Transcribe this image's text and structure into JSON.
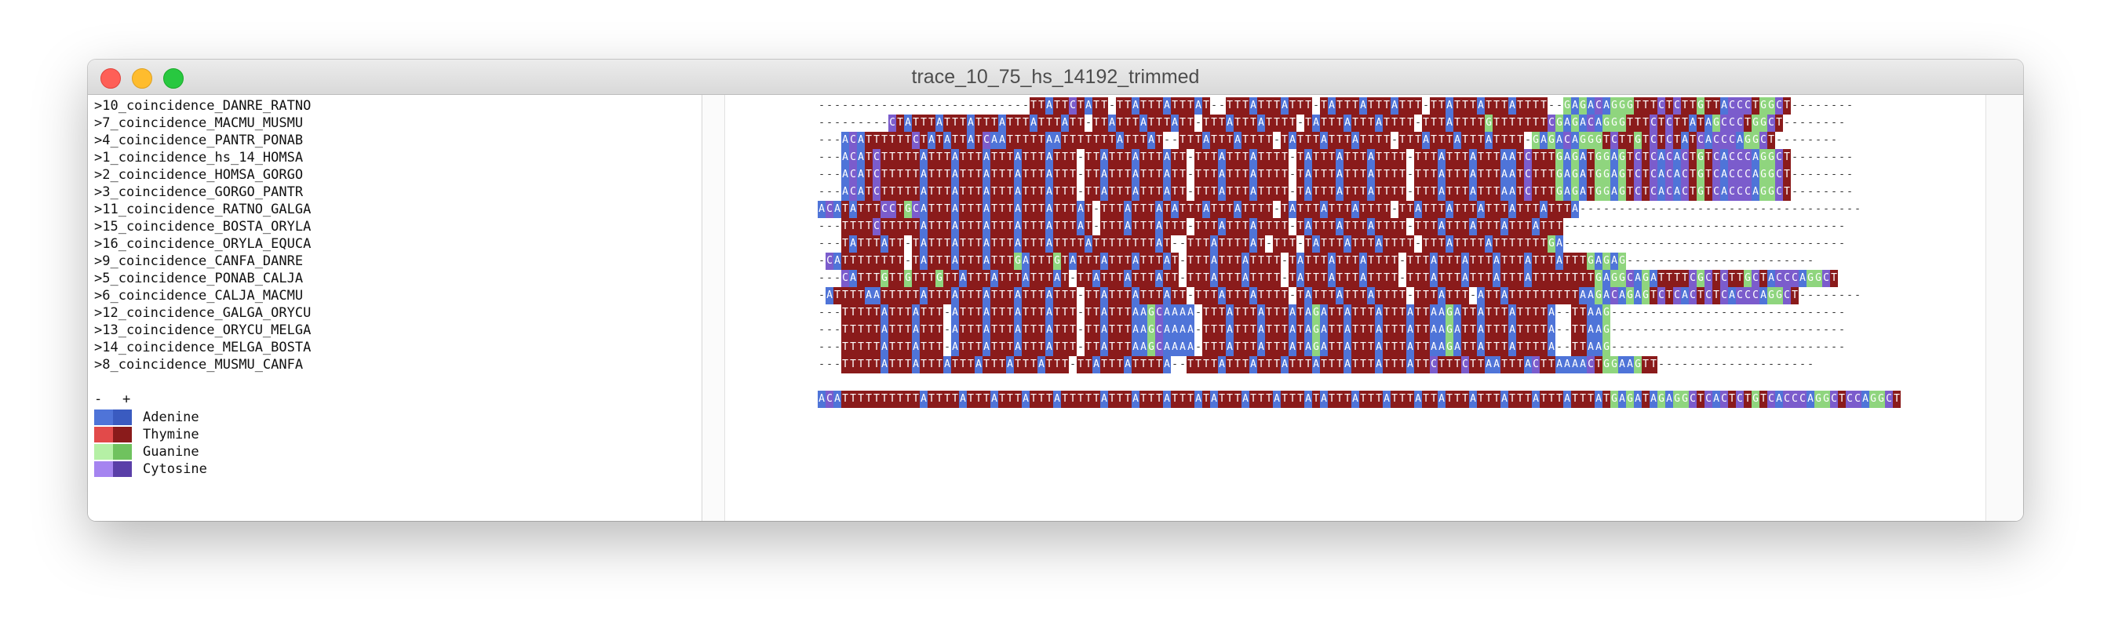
{
  "window": {
    "title": "trace_10_75_hs_14192_trimmed"
  },
  "names": [
    ">10_coincidence_DANRE_RATNO",
    ">7_coincidence_MACMU_MUSMU",
    ">4_coincidence_PANTR_PONAB",
    ">1_coincidence_hs_14_HOMSA",
    ">2_coincidence_HOMSA_GORGO",
    ">3_coincidence_GORGO_PANTR",
    ">11_coincidence_RATNO_GALGA",
    ">15_coincidence_BOSTA_ORYLA",
    ">16_coincidence_ORYLA_EQUCA",
    ">9_coincidence_CANFA_DANRE",
    ">5_coincidence_PONAB_CALJA",
    ">6_coincidence_CALJA_MACMU",
    ">12_coincidence_GALGA_ORYCU",
    ">13_coincidence_ORYCU_MELGA",
    ">14_coincidence_MELGA_BOSTA",
    ">8_coincidence_MUSMU_CANFA"
  ],
  "zoom": {
    "minus": "-",
    "plus": "+"
  },
  "legend": [
    {
      "label": "Adenine",
      "colors": [
        "#4f74d8",
        "#3a5bc0"
      ]
    },
    {
      "label": "Thymine",
      "colors": [
        "#e24a4a",
        "#8a1b1b"
      ]
    },
    {
      "label": "Guanine",
      "colors": [
        "#b5f0a5",
        "#6fc25e"
      ]
    },
    {
      "label": "Cytosine",
      "colors": [
        "#a584f0",
        "#5a3fa8"
      ]
    }
  ],
  "colors": {
    "A": "#4f74d8",
    "T": "#8a1b1b",
    "G": "#8fd57e",
    "C": "#7b5ccc"
  },
  "sequences": [
    "---------------------------TTATTCTATT-TTATTTATTTAT--TTTATTTATTT-TATTTATTTATTT-TTATTTATTTATTTT--GAGACAGGGTTTCTCTTGTTACCCTGGCT--------",
    "---------CTATTTATTTATTTATTTATTTATT-TTATTTATTTATT-TTTATTTATTTT-TATTTATTTATTTT-TTTATTTTGTTTTTTTCGAGACAGGGTTTCTCTTATAGCCCTGGCT--------",
    "---ACATTTTTTCTATATTATCAATTTTTAATTTTTTTATTTAT--TTTATTTATTTT-TATTTATTTATTTT-TTTATTTATTTATTTT-GAGACAGGGTCTTGTCTCTATCACCCAGGCT--------",
    "---ACATCTTTTTATTTATTTATTTATTTATTT-TTATTTATTTATT-TTTATTTATTTT-TATTTATTTATTTT-TTTATTTATTTAATCTTTGAGATGGAGTCTCACACTGTCACCCAGGCT--------",
    "---ACATCTTTTTATTTATTTATTTATTTATTT-TTATTTATTTATT-TTTATTTATTTT-TATTTATTTATTTT-TTTATTTATTTAATCTTTGAGATGGAGTCTCACACTGTCACCCAGGCT--------",
    "---ACATCTTTTTATTTATTTATTTATTTATTT-TTATTTATTTATT-TTTATTTATTTT-TATTTATTTATTTT-TTTATTTATTTAATCTTTGAGATGGAGTCTCACACTGTCACCCAGGCT--------",
    "ACATATTTCCTGCATTTATTTATTTATTTATTTAT-TTTATTTATATTTATTTATTTT-TATTTATTTATTTT-TTATTTATTTATTTATTTATTTA------------------------------------",
    "---TTTTCTTTTTATTTATTTATTTATTTATTTAT-TTTATTTATTT-TTTATTTATTTT-TATTTATTTATTTT-TTTATTTATTTATTTATTT------------------------------------",
    "---TATTTATT-TATTTATTTATTTATTTATTTTATTTTTTTTAT--TTTATTTTAT-TTT-TATTTATTTATTTT-TTTATTTTATTTTTTTGA------------------------------------",
    "-CATTTTTTTT-TATTTATTTATTTGATTTGTATTTATTTATTTAT-TTTATTTATTTT-TATTTATTTATTTT-TTTATTTATTTATTTATTTATTTGAGAG------------------------",
    "---CATTTGTTGTTTGTTATTTATTTATTTAT-TTATTTATTTATT-TTTATTTATTTT-TATTTATTTATTTT-TTTATTTATTTATTTATTTTTTTTGAGGCAGATTTTCGCTCTTGCTACCCAGGCT",
    "-ATTTTAATTTTTATTTATTTATTTATTTATTT-TTATTTATTTATT-TTTATTTATTTT-TATTTATTTATTTT-TTTATTT-ATTATTTTTTTTTAAGACAGAGTCTCACTCTCACCCAGGCT--------",
    "---TTTTTATTTATTT-ATTTATTTATTTATTT-TTATTTAAGCAAAA-TTTATTTATTTATAGATTATTTATTTATTAAGATTATTTATTTTA--TTAAG------------------------------",
    "---TTTTTATTTATTT-ATTTATTTATTTATTT-TTATTTAAGCAAAA-TTTATTTATTTATAGATTATTTATTTATTAAGATTATTTATTTTA--TTAAG------------------------------",
    "---TTTTTATTTATTT-ATTTATTTATTTATTT-TTATTTAAGCAAAA-TTTATTTATTTATAGATTATTTATTTATTAAGATTATTTATTTTA--TTAAG------------------------------",
    "---TTTTTATTTATTTATTTATTTATTTATTT-TTATTTATTTTA--TTTTATTTATTTATTTATTTATTTATTTATTCTTTCTTAATTTACTTAAAACTGGAAGTT--------------------"
  ],
  "consensus": "ACATTTTTTTTTTATTTTATTTATTTATTTATTTTTATTTATTTATTTATATTTATTTATTTATATTTATTTATTTATTATTTATTTATTTATTTATTTATGAGATAGAGGCTCACTCTGTCACCCAGGCTCCAGGCT"
}
